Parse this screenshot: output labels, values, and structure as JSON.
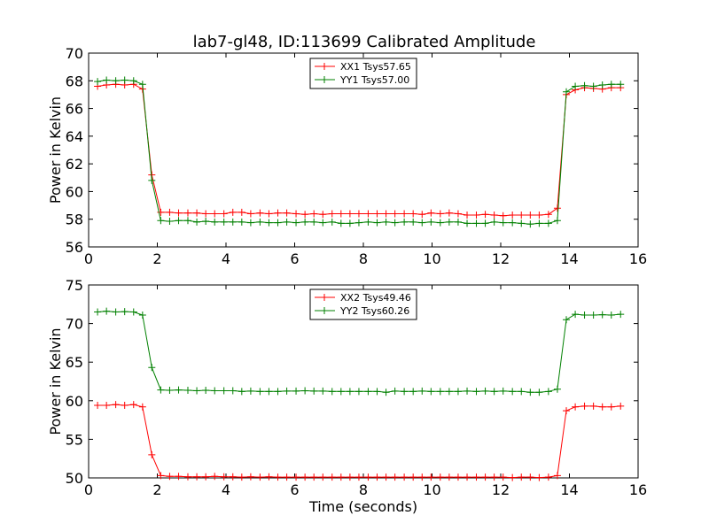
{
  "figure_title": "lab7-gl48, ID:113699 Calibrated Amplitude",
  "chart_data": [
    {
      "type": "line",
      "title": "lab7-gl48, ID:113699 Calibrated Amplitude",
      "xlabel": "",
      "ylabel": "Power in Kelvin",
      "xlim": [
        0,
        16
      ],
      "ylim": [
        56,
        70
      ],
      "xticks": [
        "0",
        "2",
        "4",
        "6",
        "8",
        "10",
        "12",
        "14",
        "16"
      ],
      "yticks": [
        "56",
        "58",
        "60",
        "62",
        "64",
        "66",
        "68",
        "70"
      ],
      "legend_position": "top-center",
      "grid": false,
      "x": [
        0.26,
        0.52,
        0.79,
        1.05,
        1.31,
        1.57,
        1.84,
        2.1,
        2.36,
        2.62,
        2.89,
        3.15,
        3.41,
        3.67,
        3.94,
        4.2,
        4.46,
        4.72,
        4.99,
        5.25,
        5.51,
        5.77,
        6.04,
        6.3,
        6.56,
        6.82,
        7.09,
        7.35,
        7.61,
        7.87,
        8.14,
        8.4,
        8.66,
        8.92,
        9.19,
        9.45,
        9.71,
        9.97,
        10.24,
        10.5,
        10.76,
        11.02,
        11.29,
        11.55,
        11.81,
        12.07,
        12.34,
        12.6,
        12.86,
        13.12,
        13.39,
        13.65,
        13.91,
        14.17,
        14.44,
        14.7,
        14.96,
        15.22,
        15.49
      ],
      "series": [
        {
          "name": "XX1 Tsys57.65",
          "color": "#ff0000",
          "values": [
            67.6,
            67.7,
            67.75,
            67.7,
            67.75,
            67.4,
            61.2,
            58.5,
            58.5,
            58.45,
            58.45,
            58.45,
            58.4,
            58.4,
            58.4,
            58.5,
            58.5,
            58.4,
            58.45,
            58.4,
            58.45,
            58.45,
            58.4,
            58.35,
            58.4,
            58.35,
            58.4,
            58.4,
            58.4,
            58.4,
            58.4,
            58.4,
            58.4,
            58.4,
            58.4,
            58.4,
            58.35,
            58.45,
            58.4,
            58.45,
            58.4,
            58.3,
            58.3,
            58.35,
            58.3,
            58.25,
            58.3,
            58.3,
            58.3,
            58.3,
            58.35,
            58.8,
            67.0,
            67.35,
            67.5,
            67.45,
            67.4,
            67.5,
            67.5
          ]
        },
        {
          "name": "YY1 Tsys57.00",
          "color": "#008000",
          "values": [
            67.95,
            68.05,
            68.0,
            68.05,
            68.0,
            67.75,
            60.8,
            57.9,
            57.85,
            57.9,
            57.9,
            57.8,
            57.85,
            57.8,
            57.8,
            57.8,
            57.8,
            57.75,
            57.8,
            57.75,
            57.75,
            57.8,
            57.75,
            57.8,
            57.8,
            57.75,
            57.8,
            57.7,
            57.7,
            57.75,
            57.8,
            57.75,
            57.8,
            57.75,
            57.8,
            57.8,
            57.75,
            57.8,
            57.75,
            57.8,
            57.8,
            57.7,
            57.7,
            57.7,
            57.8,
            57.75,
            57.75,
            57.7,
            57.65,
            57.7,
            57.7,
            57.9,
            67.2,
            67.6,
            67.65,
            67.6,
            67.7,
            67.75,
            67.75
          ]
        }
      ]
    },
    {
      "type": "line",
      "title": "",
      "xlabel": "Time (seconds)",
      "ylabel": "Power in Kelvin",
      "xlim": [
        0,
        16
      ],
      "ylim": [
        50,
        75
      ],
      "xticks": [
        "0",
        "2",
        "4",
        "6",
        "8",
        "10",
        "12",
        "14",
        "16"
      ],
      "yticks": [
        "50",
        "55",
        "60",
        "65",
        "70",
        "75"
      ],
      "legend_position": "top-center",
      "grid": false,
      "x": [
        0.26,
        0.52,
        0.79,
        1.05,
        1.31,
        1.57,
        1.84,
        2.1,
        2.36,
        2.62,
        2.89,
        3.15,
        3.41,
        3.67,
        3.94,
        4.2,
        4.46,
        4.72,
        4.99,
        5.25,
        5.51,
        5.77,
        6.04,
        6.3,
        6.56,
        6.82,
        7.09,
        7.35,
        7.61,
        7.87,
        8.14,
        8.4,
        8.66,
        8.92,
        9.19,
        9.45,
        9.71,
        9.97,
        10.24,
        10.5,
        10.76,
        11.02,
        11.29,
        11.55,
        11.81,
        12.07,
        12.34,
        12.6,
        12.86,
        13.12,
        13.39,
        13.65,
        13.91,
        14.17,
        14.44,
        14.7,
        14.96,
        15.22,
        15.49
      ],
      "series": [
        {
          "name": "XX2 Tsys49.46",
          "color": "#ff0000",
          "values": [
            59.4,
            59.4,
            59.5,
            59.4,
            59.5,
            59.2,
            53.0,
            50.3,
            50.2,
            50.2,
            50.15,
            50.15,
            50.15,
            50.2,
            50.15,
            50.15,
            50.1,
            50.15,
            50.1,
            50.15,
            50.1,
            50.1,
            50.1,
            50.1,
            50.1,
            50.1,
            50.1,
            50.1,
            50.1,
            50.1,
            50.1,
            50.1,
            50.1,
            50.1,
            50.1,
            50.1,
            50.1,
            50.1,
            50.1,
            50.1,
            50.1,
            50.1,
            50.1,
            50.1,
            50.1,
            50.1,
            50.05,
            50.1,
            50.1,
            50.05,
            50.1,
            50.3,
            58.7,
            59.2,
            59.3,
            59.3,
            59.2,
            59.2,
            59.3
          ]
        },
        {
          "name": "YY2 Tsys60.26",
          "color": "#008000",
          "values": [
            71.5,
            71.6,
            71.5,
            71.55,
            71.5,
            71.1,
            64.3,
            61.4,
            61.35,
            61.4,
            61.35,
            61.3,
            61.35,
            61.3,
            61.3,
            61.3,
            61.2,
            61.25,
            61.2,
            61.2,
            61.2,
            61.25,
            61.25,
            61.3,
            61.25,
            61.25,
            61.2,
            61.2,
            61.2,
            61.2,
            61.2,
            61.2,
            61.1,
            61.25,
            61.2,
            61.2,
            61.25,
            61.2,
            61.2,
            61.2,
            61.2,
            61.25,
            61.2,
            61.25,
            61.2,
            61.25,
            61.2,
            61.2,
            61.1,
            61.1,
            61.2,
            61.5,
            70.5,
            71.2,
            71.1,
            71.1,
            71.15,
            71.1,
            71.2
          ]
        }
      ]
    }
  ]
}
